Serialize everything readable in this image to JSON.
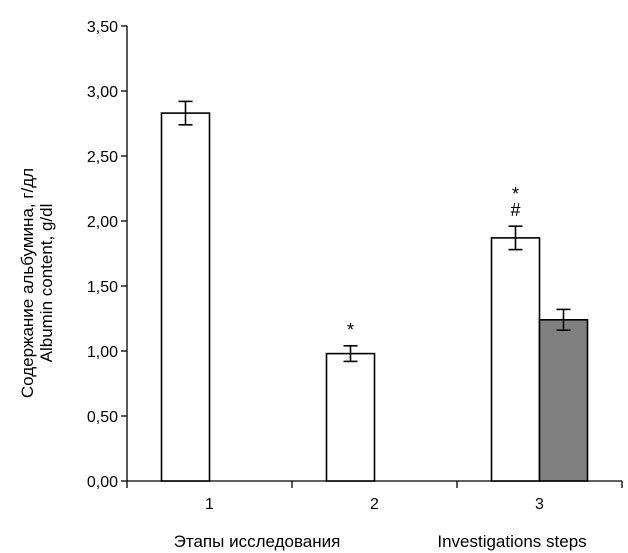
{
  "chart_data": {
    "type": "bar",
    "categories": [
      "1",
      "2",
      "3"
    ],
    "series": [
      {
        "fill": "#ffffff",
        "values": [
          2.83,
          0.98,
          1.87
        ],
        "errors": [
          0.09,
          0.06,
          0.09
        ]
      },
      {
        "fill": "#808080",
        "values": [
          null,
          null,
          1.24
        ],
        "errors": [
          null,
          null,
          0.08
        ]
      }
    ],
    "annotations": [
      {
        "category": "2",
        "series": 0,
        "text": "*"
      },
      {
        "category": "3",
        "series": 0,
        "text": "*"
      },
      {
        "category": "3",
        "series": 0,
        "text": "#"
      }
    ],
    "ylabel_line1": "Содержание альбумина, г/дл",
    "ylabel_line2": "Albumin content, g/dl",
    "xlabel_ru": "Этапы исследования",
    "xlabel_en": "Investigations steps",
    "ylim": [
      0,
      3.5
    ],
    "yticks": [
      "0,00",
      "0,50",
      "1,00",
      "1,50",
      "2,00",
      "2,50",
      "3,00",
      "3,50"
    ],
    "ytick_values": [
      0,
      0.5,
      1,
      1.5,
      2,
      2.5,
      3,
      3.5
    ],
    "grid": false,
    "legend": "none"
  }
}
